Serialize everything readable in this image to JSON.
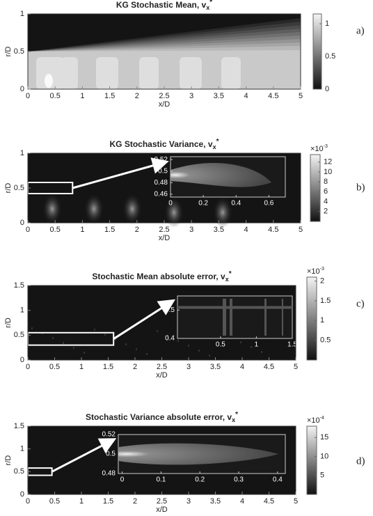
{
  "chart_data": [
    {
      "type": "contour",
      "title": "KG Stochastic Mean, v",
      "title_sub": "x",
      "title_sup": "*",
      "xlabel": "x/D",
      "ylabel": "r/D",
      "panel_label": "a)",
      "xlim": [
        0,
        5
      ],
      "xticks": [
        0,
        0.5,
        1,
        1.5,
        2,
        2.5,
        3,
        3.5,
        4,
        4.5,
        5
      ],
      "ylim": [
        0,
        1
      ],
      "yticks": [
        0,
        0.5,
        1
      ],
      "clim": [
        0,
        1.15
      ],
      "cticks": [
        0,
        0.5,
        1
      ]
    },
    {
      "type": "contour",
      "title": "KG Stochastic Variance, v",
      "title_sub": "x",
      "title_sup": "*",
      "xlabel": "x/D",
      "ylabel": "r/D",
      "panel_label": "b)",
      "xlim": [
        0,
        5
      ],
      "xticks": [
        0,
        0.5,
        1,
        1.5,
        2,
        2.5,
        3,
        3.5,
        4,
        4.5,
        5
      ],
      "ylim": [
        0,
        1
      ],
      "yticks": [
        0,
        0.5,
        1
      ],
      "clim": [
        0,
        13.5
      ],
      "cticks": [
        2,
        4,
        6,
        8,
        10,
        12
      ],
      "colorbar_exponent": {
        "base": "×10",
        "power": "-3"
      },
      "zoom_box": {
        "x": [
          0,
          0.82
        ],
        "y": [
          0.42,
          0.58
        ]
      },
      "inset": {
        "xlim": [
          0,
          0.7
        ],
        "xticks": [
          0,
          0.2,
          0.4,
          0.6
        ],
        "ylim": [
          0.455,
          0.525
        ],
        "yticks": [
          0.46,
          0.48,
          0.5,
          0.52
        ]
      }
    },
    {
      "type": "contour",
      "title": "Stochastic Mean absolute error, v",
      "title_sub": "x",
      "title_sup": "*",
      "xlabel": "x/D",
      "ylabel": "r/D",
      "panel_label": "c)",
      "xlim": [
        0,
        5
      ],
      "xticks": [
        0,
        0.5,
        1,
        1.5,
        2,
        2.5,
        3,
        3.5,
        4,
        4.5,
        5
      ],
      "ylim": [
        0,
        1.5
      ],
      "yticks": [
        0,
        0.5,
        1,
        1.5
      ],
      "clim": [
        0,
        2.1
      ],
      "cticks": [
        0.5,
        1,
        1.5,
        2
      ],
      "colorbar_exponent": {
        "base": "×10",
        "power": "-3"
      },
      "zoom_box": {
        "x": [
          0,
          1.6
        ],
        "y": [
          0.3,
          0.55
        ]
      },
      "inset": {
        "xlim": [
          -0.1,
          1.5
        ],
        "xticks": [
          0.5,
          1,
          1.5
        ],
        "ylim": [
          0.4,
          0.55
        ],
        "yticks": [
          0.4,
          0.5
        ]
      }
    },
    {
      "type": "contour",
      "title": "Stochastic Variance absolute error, v",
      "title_sub": "x",
      "title_sup": "*",
      "xlabel": "x/D",
      "ylabel": "r/D",
      "panel_label": "d)",
      "xlim": [
        0,
        5
      ],
      "xticks": [
        0,
        0.5,
        1,
        1.5,
        2,
        2.5,
        3,
        3.5,
        4,
        4.5,
        5
      ],
      "ylim": [
        0,
        1.5
      ],
      "yticks": [
        0,
        0.5,
        1,
        1.5
      ],
      "clim": [
        0,
        18
      ],
      "cticks": [
        5,
        10,
        15
      ],
      "colorbar_exponent": {
        "base": "×10",
        "power": "-4"
      },
      "zoom_box": {
        "x": [
          0,
          0.45
        ],
        "y": [
          0.42,
          0.58
        ]
      },
      "inset": {
        "xlim": [
          -0.01,
          0.42
        ],
        "xticks": [
          0,
          0.1,
          0.2,
          0.3,
          0.4
        ],
        "ylim": [
          0.48,
          0.52
        ],
        "yticks": [
          0.48,
          0.5,
          0.52
        ]
      }
    }
  ]
}
